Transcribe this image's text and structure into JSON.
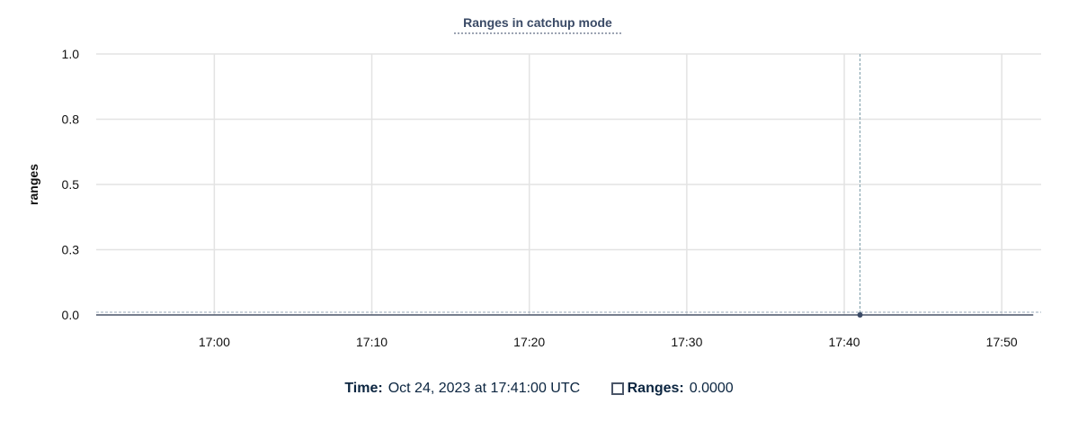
{
  "chart_data": {
    "type": "line",
    "title": "Ranges in catchup mode",
    "ylabel": "ranges",
    "xlabel": "",
    "ylim": [
      0,
      1
    ],
    "xlim": [
      "16:52:30",
      "17:52:30"
    ],
    "yticks": [
      {
        "value": 0,
        "label": "0.0"
      },
      {
        "value": 0.25,
        "label": "0.3"
      },
      {
        "value": 0.5,
        "label": "0.5"
      },
      {
        "value": 0.75,
        "label": "0.8"
      },
      {
        "value": 1,
        "label": "1.0"
      }
    ],
    "xticks": [
      "17:00",
      "17:10",
      "17:20",
      "17:30",
      "17:40",
      "17:50"
    ],
    "grid": true,
    "series": [
      {
        "name": "Ranges",
        "color": "#4a5568",
        "x": [
          "16:52:30",
          "17:41:00",
          "17:52:00"
        ],
        "values": [
          0,
          0,
          0
        ]
      }
    ],
    "hover": {
      "x": "17:41:00",
      "value": 0
    }
  },
  "legend": {
    "time_label": "Time:",
    "time_value": "Oct 24, 2023 at 17:41:00 UTC",
    "series_label": "Ranges:",
    "series_value": "0.0000"
  }
}
